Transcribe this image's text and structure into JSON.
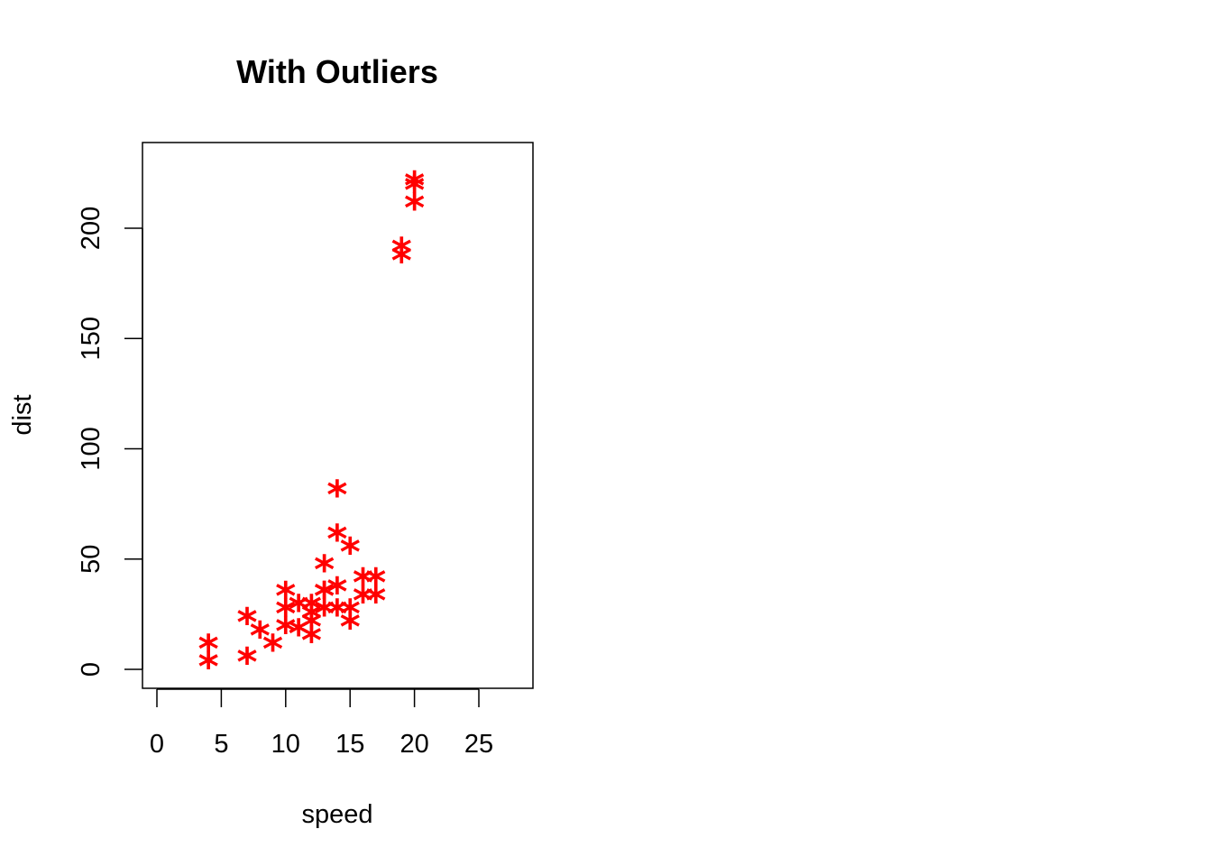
{
  "chart_data": {
    "type": "scatter",
    "title": "With Outliers",
    "xlabel": "speed",
    "ylabel": "dist",
    "xlim": [
      0,
      28
    ],
    "ylim": [
      0,
      230
    ],
    "xticks": [
      0,
      5,
      10,
      15,
      20,
      25
    ],
    "yticks": [
      0,
      50,
      100,
      150,
      200
    ],
    "grid": false,
    "legend": "none",
    "point_symbol": "*",
    "point_color": "#ff0000",
    "axis_color": "#000000",
    "series": [
      {
        "points": [
          {
            "x": 4,
            "y": 2
          },
          {
            "x": 4,
            "y": 10
          },
          {
            "x": 7,
            "y": 4
          },
          {
            "x": 7,
            "y": 22
          },
          {
            "x": 8,
            "y": 16
          },
          {
            "x": 9,
            "y": 10
          },
          {
            "x": 10,
            "y": 18
          },
          {
            "x": 10,
            "y": 26
          },
          {
            "x": 10,
            "y": 34
          },
          {
            "x": 11,
            "y": 17
          },
          {
            "x": 11,
            "y": 28
          },
          {
            "x": 12,
            "y": 14
          },
          {
            "x": 12,
            "y": 20
          },
          {
            "x": 12,
            "y": 24
          },
          {
            "x": 12,
            "y": 28
          },
          {
            "x": 13,
            "y": 26
          },
          {
            "x": 13,
            "y": 34
          },
          {
            "x": 13,
            "y": 34
          },
          {
            "x": 13,
            "y": 46
          },
          {
            "x": 14,
            "y": 26
          },
          {
            "x": 14,
            "y": 36
          },
          {
            "x": 14,
            "y": 60
          },
          {
            "x": 14,
            "y": 80
          },
          {
            "x": 15,
            "y": 20
          },
          {
            "x": 15,
            "y": 26
          },
          {
            "x": 15,
            "y": 54
          },
          {
            "x": 16,
            "y": 32
          },
          {
            "x": 16,
            "y": 40
          },
          {
            "x": 17,
            "y": 32
          },
          {
            "x": 17,
            "y": 40
          },
          {
            "x": 19,
            "y": 186
          },
          {
            "x": 19,
            "y": 190
          },
          {
            "x": 20,
            "y": 210
          },
          {
            "x": 20,
            "y": 218
          },
          {
            "x": 20,
            "y": 220
          }
        ]
      }
    ]
  }
}
